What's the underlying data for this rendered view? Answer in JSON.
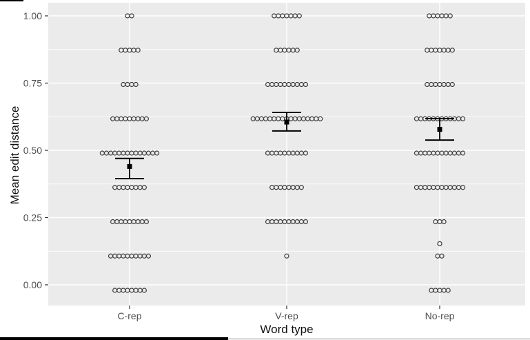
{
  "chart_data": {
    "type": "scatter",
    "variant": "stacked-dot-plot-with-mean-and-ci",
    "title": "",
    "xlabel": "Word type",
    "ylabel": "Mean edit distance",
    "categories": [
      "C-rep",
      "V-rep",
      "No-rep"
    ],
    "y_ticks": [
      {
        "label": "1.00",
        "value": 1.0
      },
      {
        "label": "0.75",
        "value": 0.75
      },
      {
        "label": "0.50",
        "value": 0.5
      },
      {
        "label": "0.25",
        "value": 0.25
      },
      {
        "label": "0.00",
        "value": 0.0
      }
    ],
    "y_minor_gridlines": [
      0.875,
      0.625,
      0.375,
      0.125
    ],
    "ylim": [
      -0.07,
      1.05
    ],
    "grid": "white major and minor horizontal gridlines plus white vertical category gridlines on gray panel",
    "legend": "none",
    "series": [
      {
        "name": "C-rep",
        "dot_rows": [
          {
            "value": 1.0,
            "count": 2
          },
          {
            "value": 0.875,
            "count": 5
          },
          {
            "value": 0.75,
            "count": 4
          },
          {
            "value": 0.625,
            "count": 9
          },
          {
            "value": 0.5,
            "count": 14
          },
          {
            "value": 0.375,
            "count": 8
          },
          {
            "value": 0.25,
            "count": 9
          },
          {
            "value": 0.125,
            "count": 10
          },
          {
            "value": 0.0,
            "count": 8
          }
        ],
        "mean": 0.44,
        "ci_low": 0.395,
        "ci_high": 0.47
      },
      {
        "name": "V-rep",
        "dot_rows": [
          {
            "value": 1.0,
            "count": 7
          },
          {
            "value": 0.875,
            "count": 6
          },
          {
            "value": 0.75,
            "count": 10
          },
          {
            "value": 0.625,
            "count": 17
          },
          {
            "value": 0.5,
            "count": 10
          },
          {
            "value": 0.375,
            "count": 8
          },
          {
            "value": 0.25,
            "count": 10
          },
          {
            "value": 0.125,
            "count": 1
          }
        ],
        "mean": 0.605,
        "ci_low": 0.572,
        "ci_high": 0.641
      },
      {
        "name": "No-rep",
        "dot_rows": [
          {
            "value": 1.0,
            "count": 6
          },
          {
            "value": 0.875,
            "count": 7
          },
          {
            "value": 0.75,
            "count": 7
          },
          {
            "value": 0.625,
            "count": 12
          },
          {
            "value": 0.5,
            "count": 12
          },
          {
            "value": 0.375,
            "count": 12
          },
          {
            "value": 0.25,
            "count": 3
          },
          {
            "value": 0.17,
            "count": 1
          },
          {
            "value": 0.125,
            "count": 2
          },
          {
            "value": 0.0,
            "count": 5
          }
        ],
        "mean": 0.578,
        "ci_low": 0.538,
        "ci_high": 0.618
      }
    ],
    "colors": {
      "panel_bg": "#ebebeb",
      "gridline": "#ffffff",
      "dot_stroke": "#3a3a3a",
      "errorbar": "#000000",
      "tick_label": "#4d4d4d",
      "axis_title": "#111111"
    }
  }
}
